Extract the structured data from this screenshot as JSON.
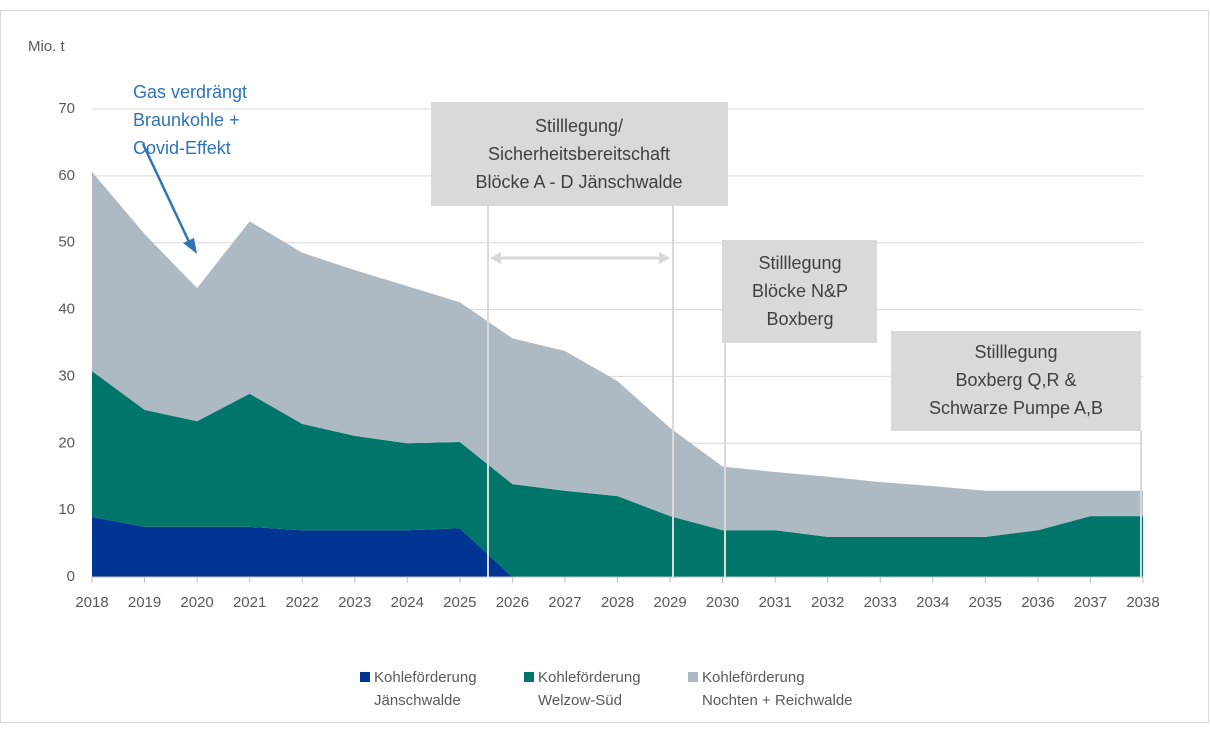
{
  "chart_data": {
    "type": "stacked_area",
    "y_label": "Mio. t",
    "x": [
      2018,
      2019,
      2020,
      2021,
      2022,
      2023,
      2024,
      2025,
      2026,
      2027,
      2028,
      2029,
      2030,
      2031,
      2032,
      2033,
      2034,
      2035,
      2036,
      2037,
      2038
    ],
    "xticks": [
      2018,
      2019,
      2020,
      2021,
      2022,
      2023,
      2024,
      2025,
      2026,
      2027,
      2028,
      2029,
      2030,
      2031,
      2032,
      2033,
      2034,
      2035,
      2036,
      2037,
      2038
    ],
    "xlim": [
      2018,
      2038
    ],
    "ylim": [
      0,
      70
    ],
    "yticks": [
      0,
      10,
      20,
      30,
      40,
      50,
      60,
      70
    ],
    "grid": true,
    "series": [
      {
        "name": [
          "Kohleförderung",
          "Jänschwalde"
        ],
        "color": "#003594",
        "values": [
          9,
          7.5,
          7.5,
          7.5,
          7,
          7,
          7,
          7.3,
          0,
          0,
          0,
          0,
          0,
          0,
          0,
          0,
          0,
          0,
          0,
          0,
          0
        ]
      },
      {
        "name": [
          "Kohleförderung",
          "Welzow-Süd"
        ],
        "color": "#00756a",
        "values": [
          21.8,
          17.5,
          15.8,
          19.9,
          15.9,
          14.1,
          13,
          12.9,
          13.9,
          12.9,
          12.1,
          9.1,
          7,
          7,
          6,
          6,
          6,
          6,
          7,
          9.1,
          9.1
        ]
      },
      {
        "name": [
          "Kohleförderung",
          "Nochten + Reichwalde"
        ],
        "color": "#adb9c3",
        "values": [
          29.8,
          26.3,
          19.9,
          25.8,
          25.6,
          24.8,
          23.5,
          20.9,
          21.8,
          20.9,
          17.2,
          13.2,
          9.5,
          8.7,
          9,
          8.2,
          7.6,
          6.9,
          5.9,
          3.8,
          3.8
        ]
      }
    ],
    "annotations": [
      {
        "lines": [
          "Gas verdrängt",
          "Braunkohle +",
          "Covid-Effekt"
        ]
      },
      {
        "lines": [
          "Stilllegung/",
          "Sicherheitsbereitschaft",
          "Blöcke A - D Jänschwalde"
        ]
      },
      {
        "lines": [
          "Stilllegung",
          "Blöcke N&P",
          "Boxberg"
        ]
      },
      {
        "lines": [
          "Stilllegung",
          "Boxberg Q,R &",
          "Schwarze Pumpe A,B"
        ]
      }
    ]
  }
}
